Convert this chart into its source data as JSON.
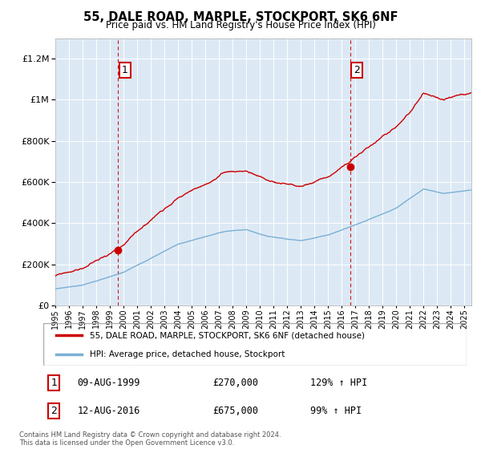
{
  "title": "55, DALE ROAD, MARPLE, STOCKPORT, SK6 6NF",
  "subtitle": "Price paid vs. HM Land Registry's House Price Index (HPI)",
  "legend_line1": "55, DALE ROAD, MARPLE, STOCKPORT, SK6 6NF (detached house)",
  "legend_line2": "HPI: Average price, detached house, Stockport",
  "annotation1_label": "1",
  "annotation1_date": "09-AUG-1999",
  "annotation1_price": "£270,000",
  "annotation1_hpi": "129% ↑ HPI",
  "annotation2_label": "2",
  "annotation2_date": "12-AUG-2016",
  "annotation2_price": "£675,000",
  "annotation2_hpi": "99% ↑ HPI",
  "footer": "Contains HM Land Registry data © Crown copyright and database right 2024.\nThis data is licensed under the Open Government Licence v3.0.",
  "bg_color": "#dce9f5",
  "red_color": "#cc0000",
  "blue_color": "#7aafd4",
  "ylim": [
    0,
    1300000
  ],
  "sale1_year": 1999.6,
  "sale1_price": 270000,
  "sale2_year": 2016.6,
  "sale2_price": 675000,
  "xmin": 1995,
  "xmax": 2025.5
}
